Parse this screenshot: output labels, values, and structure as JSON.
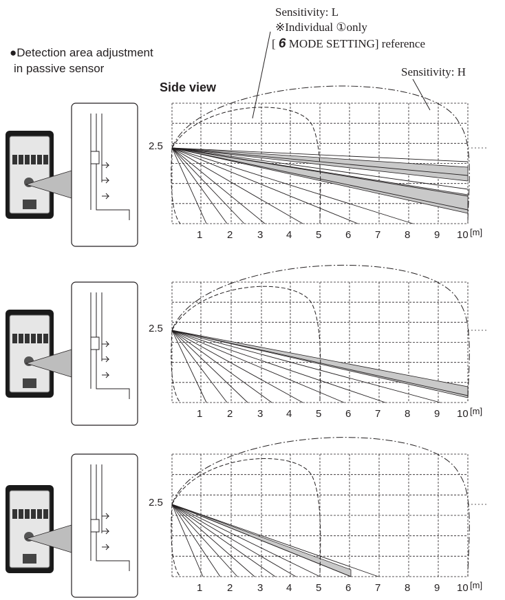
{
  "header": {
    "bullet": "●",
    "intro_line1": "Detection area adjustment",
    "intro_line2": "in passive sensor",
    "side_view": "Side view"
  },
  "callouts": {
    "sensitivity_l": "Sensitivity: L",
    "individual_prefix": "※Individual ",
    "individual_circled": "①",
    "individual_suffix": "only",
    "reference_open": "[ ",
    "reference_num": "6",
    "reference_text": " MODE SETTING] reference",
    "sensitivity_h": "Sensitivity: H"
  },
  "diagrams": [
    {
      "height_label": "2.5",
      "x_ticks": [
        "1",
        "2",
        "3",
        "4",
        "5",
        "6",
        "7",
        "8",
        "9",
        "10"
      ],
      "unit": "[m]"
    },
    {
      "height_label": "2.5",
      "x_ticks": [
        "1",
        "2",
        "3",
        "4",
        "5",
        "6",
        "7",
        "8",
        "9",
        "10"
      ],
      "unit": "[m]"
    },
    {
      "height_label": "2.5",
      "x_ticks": [
        "1",
        "2",
        "3",
        "4",
        "5",
        "6",
        "7",
        "8",
        "9",
        "10"
      ],
      "unit": "[m]"
    }
  ],
  "colors": {
    "ink": "#231f20",
    "zone_fill": "#c9c9c9",
    "device_dark": "#1a1a1a",
    "device_light": "#e6e6e6"
  }
}
